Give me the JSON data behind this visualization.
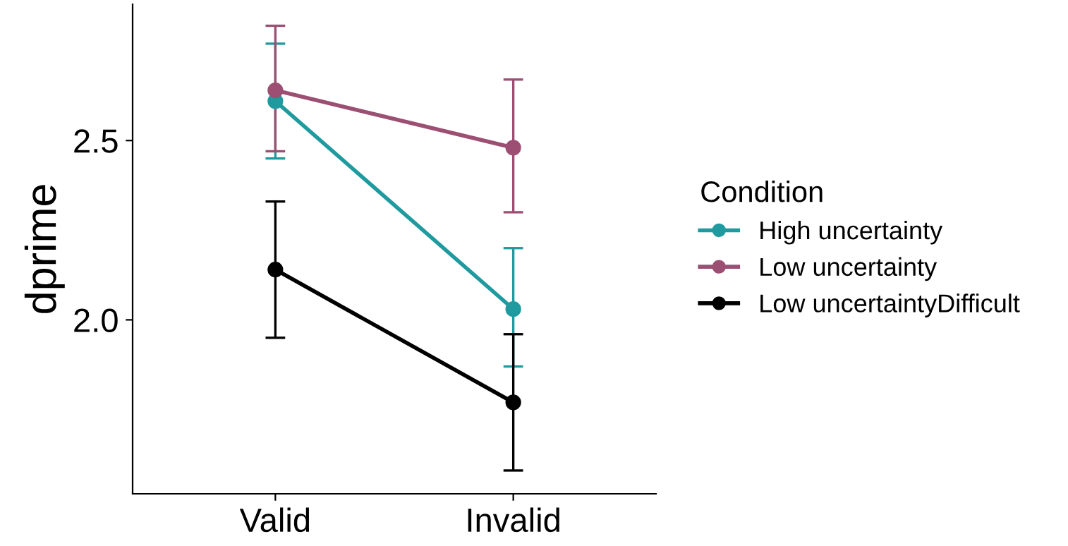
{
  "chart_data": {
    "type": "line",
    "categories": [
      "Valid",
      "Invalid"
    ],
    "ylabel": "dprime",
    "legend_title": "Condition",
    "ylim": [
      1.515,
      2.88
    ],
    "yticks": [
      {
        "value": 2,
        "label": "2.0"
      },
      2.5
    ],
    "grid": false,
    "legend": "right",
    "marker": "circle",
    "line_style": "solid",
    "series": [
      {
        "name": "High uncertainty",
        "color": "#1f9a9f",
        "values": [
          2.61,
          2.03
        ],
        "errors": [
          [
            2.45,
            2.77
          ],
          [
            1.87,
            2.2
          ]
        ]
      },
      {
        "name": "Low uncertainty",
        "color": "#9c4f73",
        "values": [
          2.64,
          2.48
        ],
        "errors": [
          [
            2.47,
            2.82
          ],
          [
            2.3,
            2.67
          ]
        ]
      },
      {
        "name": "Low uncertaintyDifficult",
        "color": "#000000",
        "values": [
          2.14,
          1.77
        ],
        "errors": [
          [
            1.95,
            2.33
          ],
          [
            1.58,
            1.96
          ]
        ]
      }
    ]
  }
}
